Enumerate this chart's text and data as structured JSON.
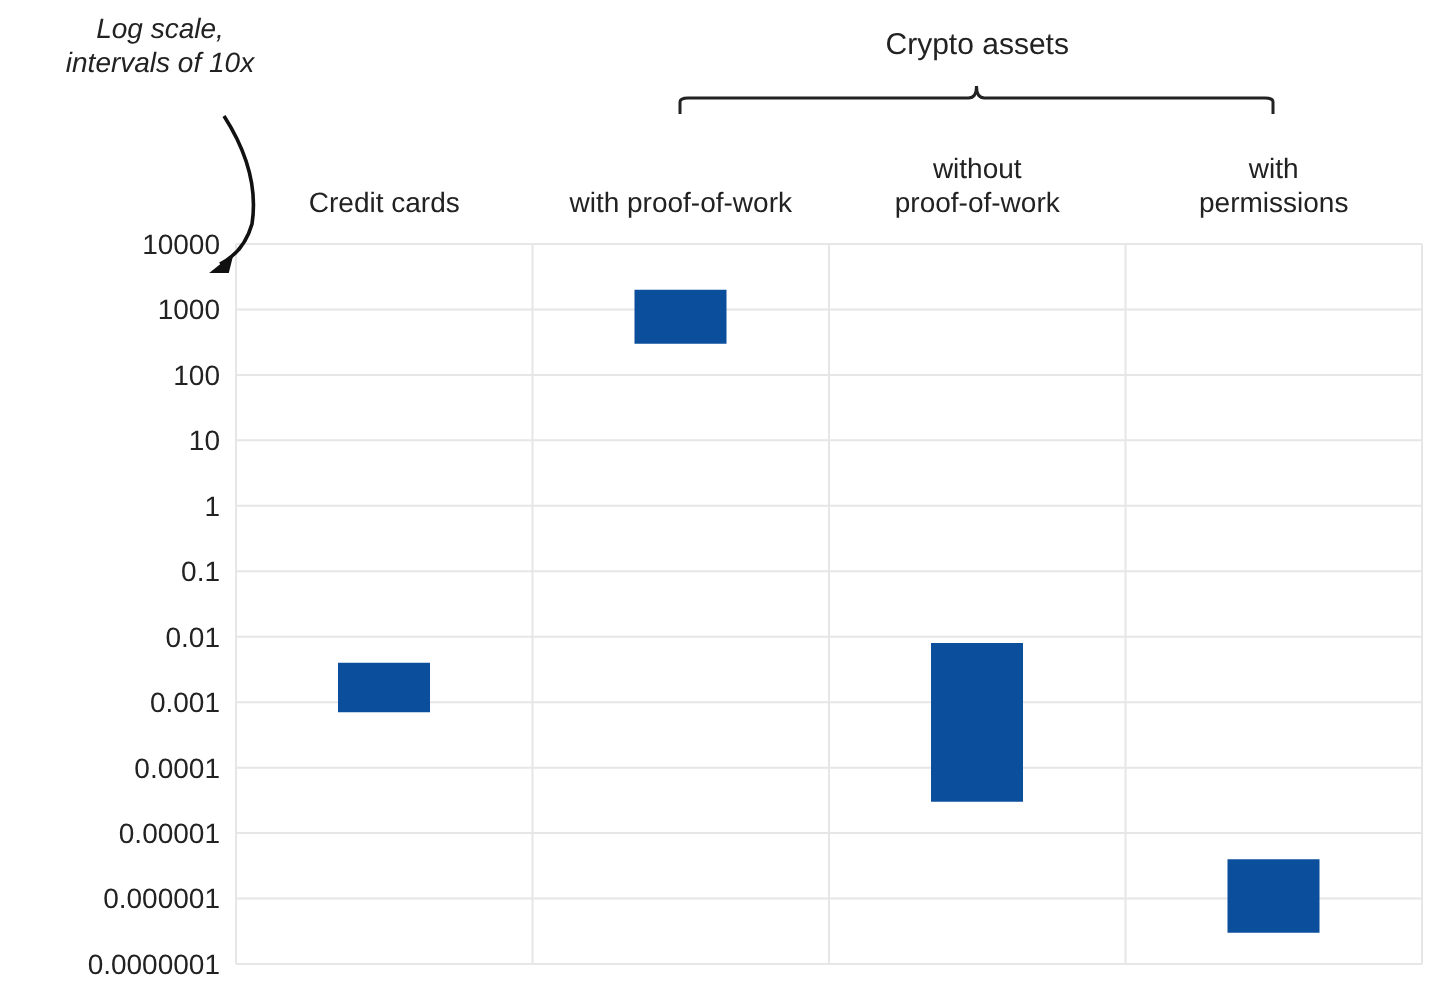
{
  "chart_data": {
    "type": "bar",
    "categories": [
      "Credit cards",
      "with proof-of-work",
      "without\nproof-of-work",
      "with\npermissions"
    ],
    "base": [
      0.0007,
      300,
      3e-05,
      3e-07
    ],
    "values": [
      0.0033,
      1700,
      0.00797,
      3.7e-06
    ],
    "color": "#0b4f9c",
    "log": true,
    "ylim": [
      1e-07,
      10000
    ],
    "yticks": [
      {
        "value": 1e-07,
        "label": "0.0000001"
      },
      {
        "value": 1e-06,
        "label": "0.000001"
      },
      {
        "value": 1e-05,
        "label": "0.00001"
      },
      0.0001,
      0.001,
      0.01,
      0.1,
      1,
      10,
      100,
      1000,
      10000
    ],
    "grid": true,
    "annotations": [
      "Log scale, intervals of 10x",
      "Crypto assets"
    ]
  }
}
